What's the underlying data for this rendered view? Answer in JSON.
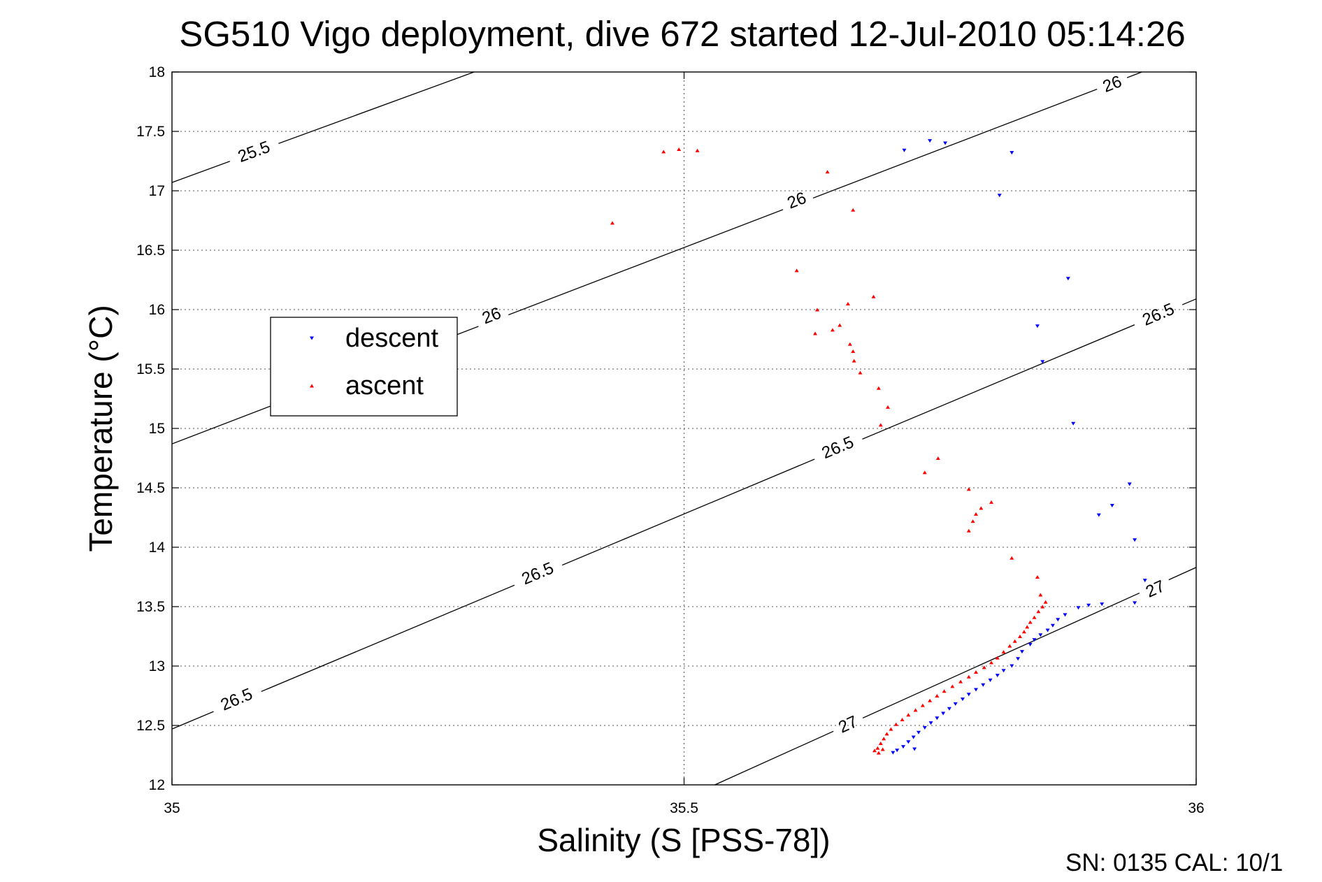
{
  "chart_data": {
    "type": "scatter",
    "title": "SG510 Vigo deployment, dive 672 started 12-Jul-2010 05:14:26",
    "xlabel": "Salinity (S [PSS-78])",
    "ylabel": "Temperature (°C)",
    "xlim": [
      35,
      36
    ],
    "ylim": [
      12,
      18
    ],
    "x_ticks": [
      "35",
      "35.5",
      "36"
    ],
    "y_ticks": [
      "12",
      "12.5",
      "13",
      "13.5",
      "14",
      "14.5",
      "15",
      "15.5",
      "16",
      "16.5",
      "17",
      "17.5",
      "18"
    ],
    "grid": true,
    "legend_position": "middle-left",
    "footer": "SN: 0135  CAL: 10/1",
    "series": [
      {
        "name": "descent",
        "color": "#0000ff",
        "marker": "triangle-down",
        "points": [
          [
            35.715,
            17.34
          ],
          [
            35.74,
            17.42
          ],
          [
            35.755,
            17.4
          ],
          [
            35.82,
            17.32
          ],
          [
            35.808,
            16.96
          ],
          [
            35.875,
            16.26
          ],
          [
            35.845,
            15.86
          ],
          [
            35.85,
            15.56
          ],
          [
            35.88,
            15.04
          ],
          [
            35.935,
            14.53
          ],
          [
            35.918,
            14.35
          ],
          [
            35.905,
            14.27
          ],
          [
            35.94,
            14.06
          ],
          [
            35.95,
            13.72
          ],
          [
            35.94,
            13.53
          ],
          [
            35.908,
            13.52
          ],
          [
            35.895,
            13.51
          ],
          [
            35.885,
            13.49
          ],
          [
            35.872,
            13.43
          ],
          [
            35.865,
            13.39
          ],
          [
            35.86,
            13.34
          ],
          [
            35.855,
            13.3
          ],
          [
            35.848,
            13.26
          ],
          [
            35.842,
            13.22
          ],
          [
            35.838,
            13.18
          ],
          [
            35.83,
            13.12
          ],
          [
            35.826,
            13.06
          ],
          [
            35.82,
            13.0
          ],
          [
            35.812,
            12.96
          ],
          [
            35.806,
            12.92
          ],
          [
            35.799,
            12.88
          ],
          [
            35.792,
            12.84
          ],
          [
            35.785,
            12.8
          ],
          [
            35.778,
            12.76
          ],
          [
            35.772,
            12.72
          ],
          [
            35.765,
            12.68
          ],
          [
            35.759,
            12.64
          ],
          [
            35.753,
            12.6
          ],
          [
            35.747,
            12.56
          ],
          [
            35.741,
            12.52
          ],
          [
            35.735,
            12.48
          ],
          [
            35.729,
            12.44
          ],
          [
            35.724,
            12.4
          ],
          [
            35.719,
            12.36
          ],
          [
            35.714,
            12.32
          ],
          [
            35.708,
            12.29
          ],
          [
            35.704,
            12.27
          ],
          [
            35.725,
            12.3
          ]
        ]
      },
      {
        "name": "ascent",
        "color": "#ff0000",
        "marker": "triangle-up",
        "points": [
          [
            35.43,
            16.73
          ],
          [
            35.48,
            17.33
          ],
          [
            35.495,
            17.35
          ],
          [
            35.513,
            17.34
          ],
          [
            35.64,
            17.16
          ],
          [
            35.665,
            16.84
          ],
          [
            35.61,
            16.33
          ],
          [
            35.63,
            16.0
          ],
          [
            35.628,
            15.8
          ],
          [
            35.645,
            15.83
          ],
          [
            35.652,
            15.87
          ],
          [
            35.66,
            16.05
          ],
          [
            35.685,
            16.11
          ],
          [
            35.662,
            15.71
          ],
          [
            35.665,
            15.65
          ],
          [
            35.666,
            15.57
          ],
          [
            35.672,
            15.47
          ],
          [
            35.69,
            15.34
          ],
          [
            35.699,
            15.18
          ],
          [
            35.692,
            15.03
          ],
          [
            35.748,
            14.75
          ],
          [
            35.735,
            14.63
          ],
          [
            35.778,
            14.49
          ],
          [
            35.8,
            14.38
          ],
          [
            35.79,
            14.33
          ],
          [
            35.785,
            14.28
          ],
          [
            35.782,
            14.22
          ],
          [
            35.778,
            14.14
          ],
          [
            35.82,
            13.91
          ],
          [
            35.845,
            13.75
          ],
          [
            35.848,
            13.6
          ],
          [
            35.853,
            13.54
          ],
          [
            35.85,
            13.5
          ],
          [
            35.846,
            13.46
          ],
          [
            35.842,
            13.41
          ],
          [
            35.838,
            13.37
          ],
          [
            35.835,
            13.33
          ],
          [
            35.832,
            13.29
          ],
          [
            35.828,
            13.25
          ],
          [
            35.823,
            13.21
          ],
          [
            35.818,
            13.17
          ],
          [
            35.812,
            13.12
          ],
          [
            35.806,
            13.07
          ],
          [
            35.8,
            13.03
          ],
          [
            35.793,
            12.99
          ],
          [
            35.785,
            12.95
          ],
          [
            35.778,
            12.91
          ],
          [
            35.77,
            12.87
          ],
          [
            35.762,
            12.83
          ],
          [
            35.754,
            12.79
          ],
          [
            35.747,
            12.75
          ],
          [
            35.74,
            12.71
          ],
          [
            35.733,
            12.67
          ],
          [
            35.726,
            12.63
          ],
          [
            35.719,
            12.59
          ],
          [
            35.713,
            12.55
          ],
          [
            35.707,
            12.51
          ],
          [
            35.702,
            12.47
          ],
          [
            35.698,
            12.43
          ],
          [
            35.695,
            12.39
          ],
          [
            35.692,
            12.35
          ],
          [
            35.689,
            12.31
          ],
          [
            35.686,
            12.29
          ],
          [
            35.69,
            12.27
          ],
          [
            35.694,
            12.3
          ]
        ]
      }
    ],
    "density_contours": [
      {
        "value": 25.5,
        "label": "25.5",
        "line": [
          [
            35.0,
            17.07
          ],
          [
            35.295,
            18.0
          ]
        ],
        "label_points": [
          [
            35.08,
            17.33
          ]
        ]
      },
      {
        "value": 26.0,
        "label": "26",
        "line": [
          [
            35.0,
            14.87
          ],
          [
            35.947,
            18.0
          ]
        ],
        "label_points": [
          [
            35.312,
            15.95
          ],
          [
            35.61,
            16.92
          ],
          [
            35.918,
            17.9
          ]
        ]
      },
      {
        "value": 26.5,
        "label": "26.5",
        "line": [
          [
            35.0,
            12.47
          ],
          [
            36.0,
            16.09
          ]
        ],
        "label_points": [
          [
            35.063,
            12.72
          ],
          [
            35.357,
            13.78
          ],
          [
            35.65,
            14.84
          ],
          [
            35.963,
            15.96
          ]
        ]
      },
      {
        "value": 27.0,
        "label": "27",
        "line": [
          [
            35.53,
            12.0
          ],
          [
            36.0,
            13.83
          ]
        ],
        "label_points": [
          [
            35.66,
            12.51
          ],
          [
            35.96,
            13.65
          ]
        ]
      }
    ]
  }
}
